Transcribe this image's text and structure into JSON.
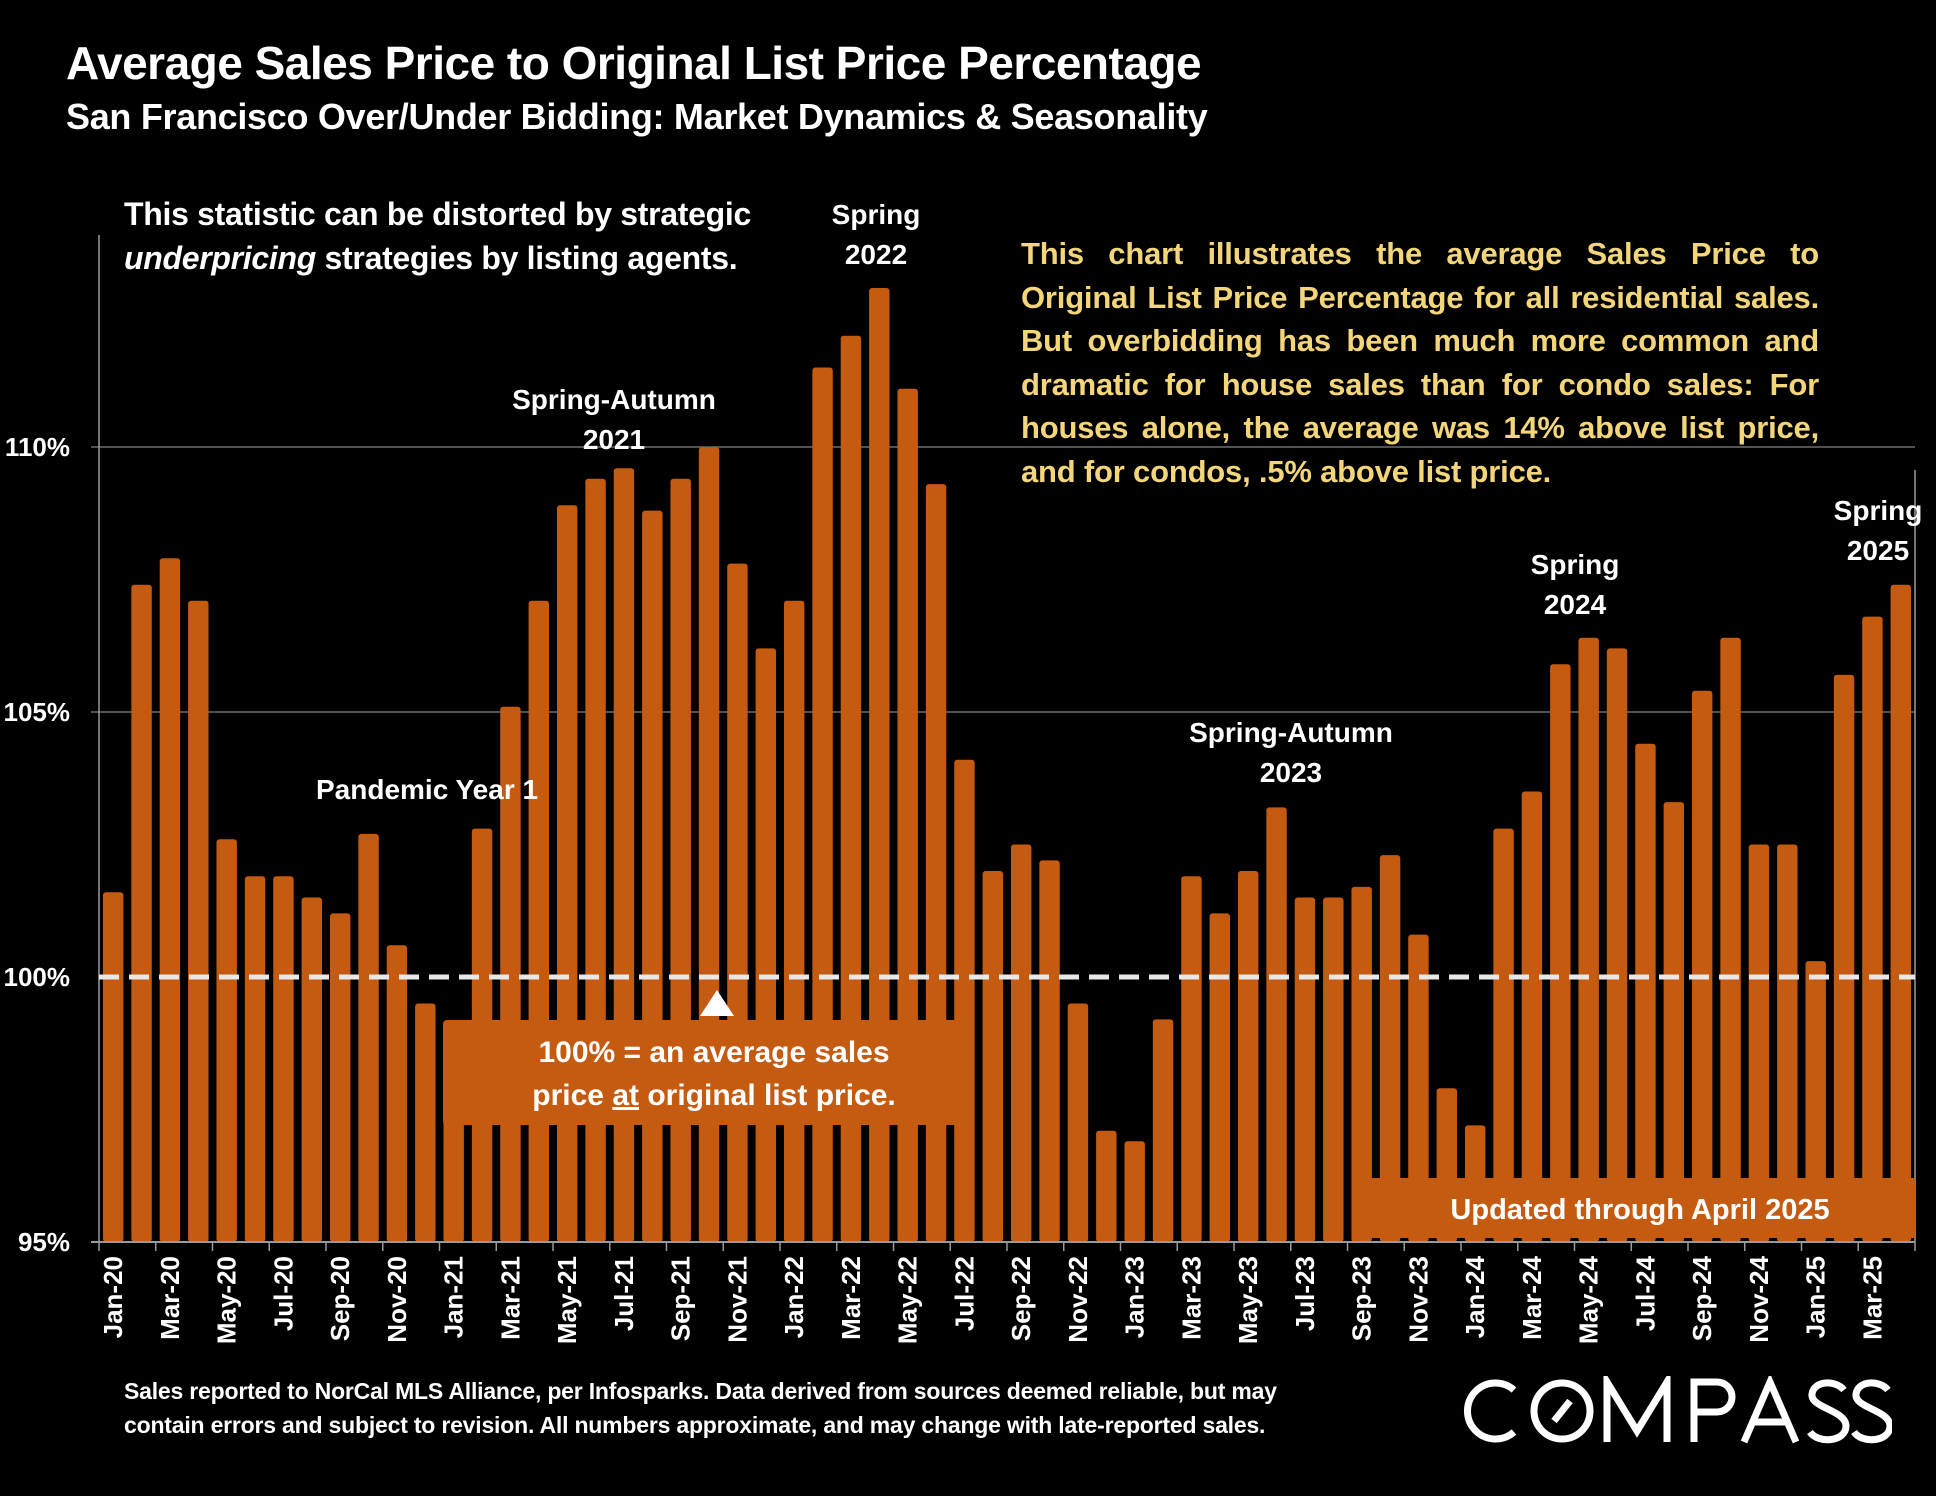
{
  "header": {
    "title": "Average Sales Price to Original List Price Percentage",
    "subtitle": "San Francisco Over/Under Bidding: Market Dynamics & Seasonality"
  },
  "notes": {
    "left_line1": "This statistic can be distorted by strategic",
    "left_line2_italic": "underpricing",
    "left_line2_rest": " strategies by listing agents.",
    "right": "This chart illustrates the average Sales Price to Original List Price Percentage for all residential sales. But overbidding has been much more common and dramatic for house sales than for condo sales:  For houses alone, the average was 14% above list price, and for condos, .5% above list price."
  },
  "annotations": {
    "pandemic": "Pandemic Year 1",
    "spring_autumn_2021_l1": "Spring-Autumn",
    "spring_autumn_2021_l2": "2021",
    "spring_2022_l1": "Spring",
    "spring_2022_l2": "2022",
    "spring_autumn_2023_l1": "Spring-Autumn",
    "spring_autumn_2023_l2": "2023",
    "spring_2024_l1": "Spring",
    "spring_2024_l2": "2024",
    "spring_2025_l1": "Spring",
    "spring_2025_l2": "2025",
    "box_100_l1": "100% = an average sales",
    "box_100_l2_pre": "price ",
    "box_100_l2_underline": "at",
    "box_100_l2_post": " original list price.",
    "updated": "Updated through April 2025"
  },
  "footer": {
    "line1": "Sales reported to NorCal MLS Alliance, per Infosparks. Data derived from sources deemed reliable, but may",
    "line2": "contain errors and subject to revision. All numbers approximate, and may change with late-reported sales.",
    "logo": "COMPASS"
  },
  "colors": {
    "bar": "#C55A11",
    "annotation_yellow": "#F4D67A",
    "reference_line": "#E8E8E8",
    "gridline": "#6E6E6E",
    "background": "#000000"
  },
  "chart_data": {
    "type": "bar",
    "title": "Average Sales Price to Original List Price Percentage",
    "subtitle": "San Francisco Over/Under Bidding: Market Dynamics & Seasonality",
    "xlabel": "",
    "ylabel": "",
    "ylim": [
      95,
      114
    ],
    "yticks": [
      95,
      100,
      105,
      110
    ],
    "ytick_labels": [
      "95%",
      "100%",
      "105%",
      "110%"
    ],
    "reference_line": {
      "value": 100,
      "style": "dashed"
    },
    "grid": true,
    "legend": "none",
    "categories": [
      "Jan-20",
      "Feb-20",
      "Mar-20",
      "Apr-20",
      "May-20",
      "Jun-20",
      "Jul-20",
      "Aug-20",
      "Sep-20",
      "Oct-20",
      "Nov-20",
      "Dec-20",
      "Jan-21",
      "Feb-21",
      "Mar-21",
      "Apr-21",
      "May-21",
      "Jun-21",
      "Jul-21",
      "Aug-21",
      "Sep-21",
      "Oct-21",
      "Nov-21",
      "Dec-21",
      "Jan-22",
      "Feb-22",
      "Mar-22",
      "Apr-22",
      "May-22",
      "Jun-22",
      "Jul-22",
      "Aug-22",
      "Sep-22",
      "Oct-22",
      "Nov-22",
      "Dec-22",
      "Jan-23",
      "Feb-23",
      "Mar-23",
      "Apr-23",
      "May-23",
      "Jun-23",
      "Jul-23",
      "Aug-23",
      "Sep-23",
      "Oct-23",
      "Nov-23",
      "Dec-23",
      "Jan-24",
      "Feb-24",
      "Mar-24",
      "Apr-24",
      "May-24",
      "Jun-24",
      "Jul-24",
      "Aug-24",
      "Sep-24",
      "Oct-24",
      "Nov-24",
      "Dec-24",
      "Jan-25",
      "Feb-25",
      "Mar-25",
      "Apr-25"
    ],
    "tick_labels": [
      "Jan-20",
      "Mar-20",
      "May-20",
      "Jul-20",
      "Sep-20",
      "Nov-20",
      "Jan-21",
      "Mar-21",
      "May-21",
      "Jul-21",
      "Sep-21",
      "Nov-21",
      "Jan-22",
      "Mar-22",
      "May-22",
      "Jul-22",
      "Sep-22",
      "Nov-22",
      "Jan-23",
      "Mar-23",
      "May-23",
      "Jul-23",
      "Sep-23",
      "Nov-23",
      "Jan-24",
      "Mar-24",
      "May-24",
      "Jul-24",
      "Sep-24",
      "Nov-24",
      "Jan-25",
      "Mar-25"
    ],
    "values": [
      101.6,
      107.4,
      107.9,
      107.1,
      102.6,
      101.9,
      101.9,
      101.5,
      101.2,
      102.7,
      100.6,
      99.5,
      99.1,
      102.8,
      105.1,
      107.1,
      108.9,
      109.4,
      109.6,
      108.8,
      109.4,
      110.0,
      107.8,
      106.2,
      107.1,
      111.5,
      112.1,
      113.0,
      111.1,
      109.3,
      104.1,
      102.0,
      102.5,
      102.2,
      99.5,
      97.1,
      96.9,
      99.2,
      101.9,
      101.2,
      102.0,
      103.2,
      101.5,
      101.5,
      101.7,
      102.3,
      100.8,
      97.9,
      97.2,
      102.8,
      103.5,
      105.9,
      106.4,
      106.2,
      104.4,
      103.3,
      105.4,
      106.4,
      102.5,
      102.5,
      100.3,
      105.7,
      106.8,
      107.4
    ]
  }
}
